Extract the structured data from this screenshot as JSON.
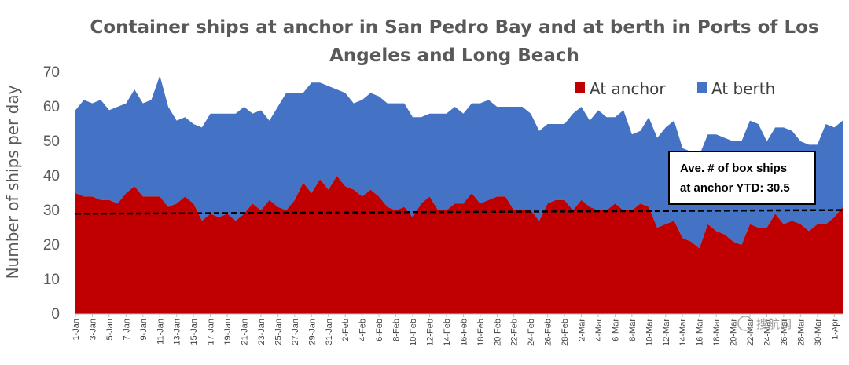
{
  "chart_data": {
    "type": "area",
    "title_line1": "Container ships at anchor in San Pedro Bay and at berth in Ports of Los",
    "title_line2": "Angeles and Long Beach",
    "ylabel": "Number of ships per day",
    "xlabel": "",
    "ylim": [
      0,
      70
    ],
    "y_ticks": [
      "0",
      "10",
      "20",
      "30",
      "40",
      "50",
      "60",
      "70"
    ],
    "x_tick_labels": [
      "1-Jan",
      "3-Jan",
      "5-Jan",
      "7-Jan",
      "9-Jan",
      "11-Jan",
      "13-Jan",
      "15-Jan",
      "17-Jan",
      "19-Jan",
      "21-Jan",
      "23-Jan",
      "25-Jan",
      "27-Jan",
      "29-Jan",
      "31-Jan",
      "2-Feb",
      "4-Feb",
      "6-Feb",
      "8-Feb",
      "10-Feb",
      "12-Feb",
      "14-Feb",
      "16-Feb",
      "18-Feb",
      "20-Feb",
      "22-Feb",
      "24-Feb",
      "26-Feb",
      "28-Feb",
      "2-Mar",
      "4-Mar",
      "6-Mar",
      "8-Mar",
      "10-Mar",
      "12-Mar",
      "14-Mar",
      "16-Mar",
      "18-Mar",
      "20-Mar",
      "22-Mar",
      "24-Mar",
      "26-Mar",
      "28-Mar",
      "30-Mar",
      "1-Apr"
    ],
    "legend": {
      "placement": "top-right",
      "entries": [
        "At anchor",
        "At berth"
      ]
    },
    "series": [
      {
        "name": "At anchor",
        "color": "#c00000",
        "values": [
          35,
          34,
          34,
          33,
          33,
          32,
          35,
          37,
          34,
          34,
          34,
          31,
          32,
          34,
          32,
          27,
          29,
          28,
          29,
          27,
          29,
          32,
          30,
          33,
          31,
          30,
          33,
          38,
          35,
          39,
          36,
          40,
          37,
          36,
          34,
          36,
          34,
          31,
          30,
          31,
          28,
          32,
          34,
          30,
          30,
          32,
          32,
          35,
          32,
          33,
          34,
          34,
          30,
          30,
          30,
          27,
          32,
          33,
          33,
          30,
          33,
          31,
          30,
          30,
          32,
          30,
          30,
          32,
          31,
          25,
          26,
          27,
          22,
          21,
          19,
          26,
          24,
          23,
          21,
          20,
          26,
          25,
          25,
          29,
          26,
          27,
          26,
          24,
          26,
          26,
          28,
          31
        ]
      },
      {
        "name": "At berth",
        "color": "#4472c4",
        "values": [
          24,
          28,
          27,
          29,
          26,
          28,
          26,
          28,
          27,
          28,
          35,
          29,
          24,
          23,
          23,
          27,
          29,
          30,
          29,
          31,
          31,
          26,
          29,
          23,
          29,
          34,
          31,
          26,
          32,
          28,
          30,
          25,
          27,
          25,
          28,
          28,
          29,
          30,
          31,
          30,
          29,
          25,
          24,
          28,
          28,
          28,
          26,
          26,
          29,
          29,
          26,
          26,
          30,
          30,
          28,
          26,
          23,
          22,
          22,
          28,
          27,
          25,
          29,
          27,
          25,
          29,
          22,
          21,
          26,
          26,
          28,
          29,
          26,
          26,
          27,
          26,
          28,
          28,
          29,
          30,
          30,
          30,
          25,
          25,
          28,
          26,
          24,
          25,
          23,
          29,
          26,
          25
        ]
      }
    ],
    "trend_line": {
      "name": "Average at anchor YTD",
      "start": 29,
      "end": 30.1,
      "color": "#000000"
    },
    "annotation": {
      "line1": "Ave. # of box ships",
      "line2": "at anchor YTD: 30.5"
    }
  },
  "watermark": {
    "text": "搜航网"
  }
}
